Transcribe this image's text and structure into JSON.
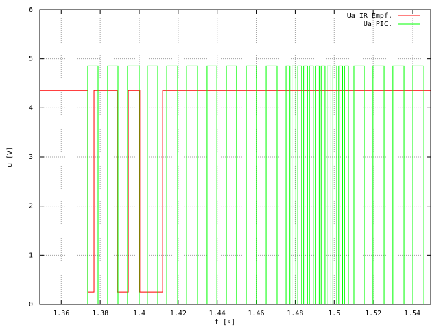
{
  "chart_data": {
    "type": "line",
    "xlabel": "t [s]",
    "ylabel": "u [V]",
    "xlim": [
      1.349,
      1.5495
    ],
    "xticks": [
      1.36,
      1.38,
      1.4,
      1.42,
      1.44,
      1.46,
      1.48,
      1.5,
      1.52,
      1.54
    ],
    "ylim": [
      0,
      6
    ],
    "yticks": [
      0,
      1,
      2,
      3,
      4,
      5,
      6
    ],
    "grid": true,
    "legend": "top-right",
    "series": [
      {
        "name": "Ua IR Empf.",
        "color": "#ff0000",
        "x": [
          1.349,
          1.3736,
          1.3736,
          1.3768,
          1.3768,
          1.3887,
          1.3887,
          1.3944,
          1.3944,
          1.4003,
          1.4003,
          1.412,
          1.412,
          1.5495
        ],
        "values": [
          4.35,
          4.35,
          0.25,
          0.25,
          4.35,
          4.35,
          0.25,
          0.25,
          4.35,
          4.35,
          0.25,
          0.25,
          4.35,
          4.35
        ]
      },
      {
        "name": "Ua PIC.",
        "color": "#00ff00",
        "x": [
          1.349,
          1.3736,
          1.3736,
          1.3789,
          1.3789,
          1.3838,
          1.3838,
          1.3891,
          1.3891,
          1.394,
          1.394,
          1.4,
          1.4,
          1.4042,
          1.4042,
          1.4095,
          1.4095,
          1.4141,
          1.4141,
          1.4197,
          1.4197,
          1.4243,
          1.4243,
          1.4299,
          1.4299,
          1.4348,
          1.4348,
          1.4398,
          1.4398,
          1.4447,
          1.4447,
          1.4499,
          1.4499,
          1.4549,
          1.4549,
          1.4601,
          1.4601,
          1.4651,
          1.4651,
          1.4707,
          1.4707,
          1.4753,
          1.4753,
          1.4773,
          1.4773,
          1.4783,
          1.4783,
          1.4803,
          1.4803,
          1.4813,
          1.4813,
          1.4833,
          1.4833,
          1.4843,
          1.4843,
          1.4863,
          1.4863,
          1.4873,
          1.4873,
          1.4893,
          1.4893,
          1.4903,
          1.4903,
          1.4923,
          1.4923,
          1.4933,
          1.4933,
          1.4953,
          1.4953,
          1.4963,
          1.4963,
          1.4983,
          1.4983,
          1.4993,
          1.4993,
          1.5013,
          1.5013,
          1.5023,
          1.5023,
          1.5043,
          1.5043,
          1.5053,
          1.5053,
          1.5073,
          1.5073,
          1.5101,
          1.5101,
          1.5154,
          1.5154,
          1.5199,
          1.5199,
          1.5256,
          1.5256,
          1.5301,
          1.5301,
          1.5358,
          1.5358,
          1.54,
          1.54,
          1.5456,
          1.5456,
          1.5495
        ],
        "values": [
          0,
          0,
          4.85,
          4.85,
          0,
          0,
          4.85,
          4.85,
          0,
          0,
          4.85,
          4.85,
          0,
          0,
          4.85,
          4.85,
          0,
          0,
          4.85,
          4.85,
          0,
          0,
          4.85,
          4.85,
          0,
          0,
          4.85,
          4.85,
          0,
          0,
          4.85,
          4.85,
          0,
          0,
          4.85,
          4.85,
          0,
          0,
          4.85,
          4.85,
          0,
          0,
          4.85,
          4.85,
          0,
          0,
          4.85,
          4.85,
          0,
          0,
          4.85,
          4.85,
          0,
          0,
          4.85,
          4.85,
          0,
          0,
          4.85,
          4.85,
          0,
          0,
          4.85,
          4.85,
          0,
          0,
          4.85,
          4.85,
          0,
          0,
          4.85,
          4.85,
          0,
          0,
          4.85,
          4.85,
          0,
          0,
          4.85,
          4.85,
          0,
          0,
          4.85,
          4.85,
          0,
          0,
          4.85,
          4.85,
          0,
          0,
          4.85,
          4.85,
          0,
          0,
          4.85,
          4.85,
          0,
          0,
          4.85,
          4.85,
          0,
          0
        ]
      }
    ]
  }
}
